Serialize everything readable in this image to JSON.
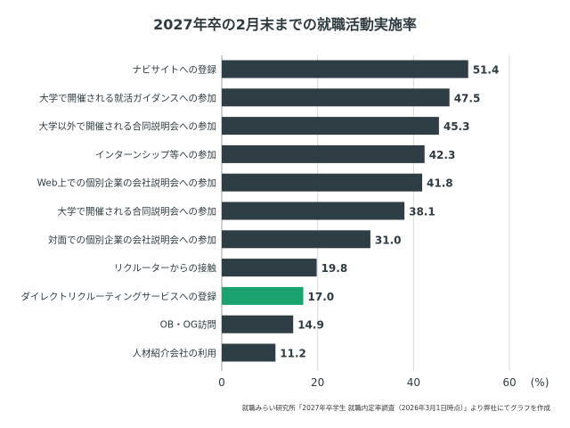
{
  "chart_data": {
    "type": "bar",
    "orientation": "horizontal",
    "title": "2027年卒の2月末までの就職活動実施率",
    "categories": [
      "ナビサイトへの登録",
      "大学で開催される就活ガイダンスへの参加",
      "大学以外で開催される合同説明会への参加",
      "インターンシップ等への参加",
      "Web上での個別企業の会社説明会への参加",
      "大学で開催される合同説明会への参加",
      "対面での個別企業の会社説明会への参加",
      "リクルーターからの接触",
      "ダイレクトリクルーティングサービスへの登録",
      "OB・OG訪問",
      "人材紹介会社の利用"
    ],
    "values": [
      51.4,
      47.5,
      45.3,
      42.3,
      41.8,
      38.1,
      31.0,
      19.8,
      17.0,
      14.9,
      11.2
    ],
    "value_labels": [
      "51.4",
      "47.5",
      "45.3",
      "42.3",
      "41.8",
      "38.1",
      "31.0",
      "19.8",
      "17.0",
      "14.9",
      "11.2"
    ],
    "highlight_index": 8,
    "xlim": [
      0,
      60
    ],
    "xticks": [
      0,
      20,
      40,
      60
    ],
    "xtick_labels": [
      "0",
      "20",
      "40",
      "60"
    ],
    "unit_label": "(%)",
    "grid": true,
    "colors": {
      "bar": "#2f3e44",
      "highlight": "#1aa271",
      "grid": "#d9d9d9",
      "text": "#2f3b40"
    }
  },
  "source_note": "就職みらい研究所「2027年卒学生 就職内定率調査（2026年3月1日時点）」より弊社にてグラフを作成"
}
